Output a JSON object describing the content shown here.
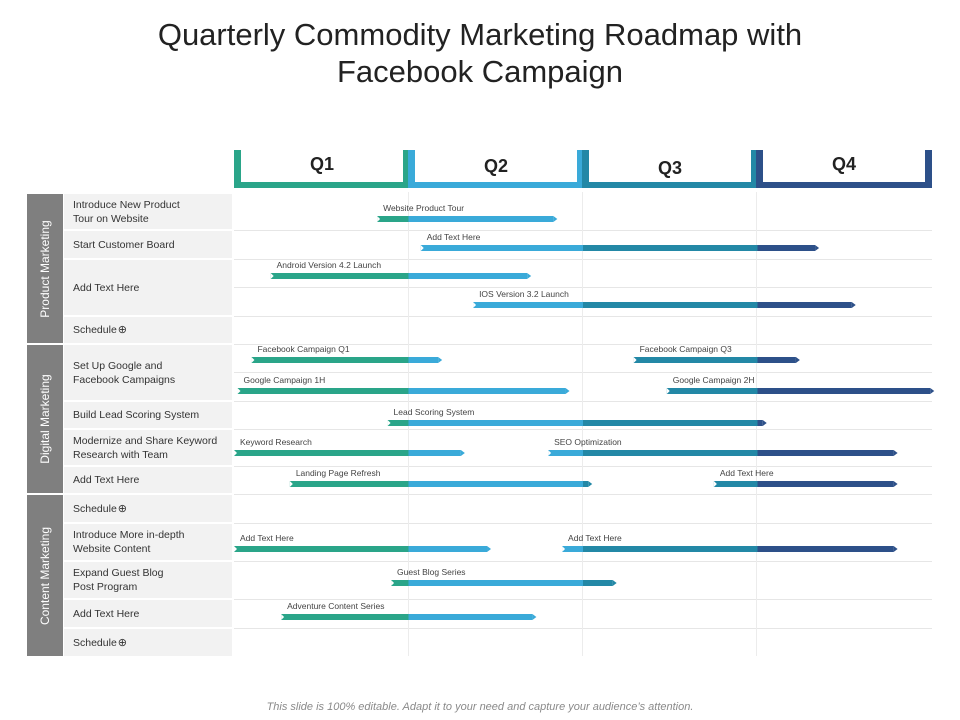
{
  "title_line1": "Quarterly Commodity Marketing Roadmap with",
  "title_line2": "Facebook Campaign",
  "quarters": [
    {
      "label": "Q1",
      "color": "#2aa589"
    },
    {
      "label": "Q2",
      "color": "#3aaad9"
    },
    {
      "label": "Q3",
      "color": "#2388a6"
    },
    {
      "label": "Q4",
      "color": "#2d5089"
    }
  ],
  "sections": [
    {
      "label": "Product Marketing"
    },
    {
      "label": "Digital Marketing"
    },
    {
      "label": "Content Marketing"
    }
  ],
  "rows": [
    {
      "label": "Introduce New Product\nTour on Website"
    },
    {
      "label": "Start Customer Board"
    },
    {
      "label": "Add Text Here"
    },
    {
      "label": "Schedule",
      "icon": "plus-circle-icon"
    },
    {
      "label": "Set Up Google and\nFacebook Campaigns"
    },
    {
      "label": "Build Lead Scoring System"
    },
    {
      "label": "Modernize and Share Keyword\nResearch with Team"
    },
    {
      "label": "Add Text Here"
    },
    {
      "label": "Schedule",
      "icon": "plus-circle-icon"
    },
    {
      "label": "Introduce More in-depth\nWebsite Content"
    },
    {
      "label": "Expand Guest Blog\nPost Program"
    },
    {
      "label": "Add Text Here"
    },
    {
      "label": "Schedule",
      "icon": "plus-circle-icon"
    }
  ],
  "tasks": [
    {
      "label": "Website Product Tour",
      "row": 0,
      "start": 0.82,
      "end": 1.83
    },
    {
      "label": "Add Text Here",
      "row": 1,
      "start": 1.07,
      "end": 3.33
    },
    {
      "label": "Android Version 4.2 Launch",
      "row": 2,
      "start": 0.21,
      "end": 1.68
    },
    {
      "label": "IOS Version 3.2 Launch",
      "row": 2,
      "start": 1.37,
      "end": 3.54
    },
    {
      "label": "Facebook Campaign Q1",
      "row": 4,
      "start": 0.1,
      "end": 1.17
    },
    {
      "label": "Facebook Campaign Q3",
      "row": 4,
      "start": 2.29,
      "end": 3.22
    },
    {
      "label": "Google Campaign 1H",
      "row": 4,
      "start": 0.02,
      "end": 1.9
    },
    {
      "label": "Google Campaign 2H",
      "row": 4,
      "start": 2.48,
      "end": 3.99
    },
    {
      "label": "Lead Scoring System",
      "row": 5,
      "start": 0.88,
      "end": 3.03
    },
    {
      "label": "Keyword Research",
      "row": 6,
      "start": 0.0,
      "end": 1.3
    },
    {
      "label": "SEO Optimization",
      "row": 6,
      "start": 1.8,
      "end": 3.78
    },
    {
      "label": "Landing Page Refresh",
      "row": 7,
      "start": 0.32,
      "end": 2.03
    },
    {
      "label": "Add Text Here",
      "row": 7,
      "start": 2.75,
      "end": 3.78
    },
    {
      "label": "Add Text Here",
      "row": 9,
      "start": 0.0,
      "end": 1.45
    },
    {
      "label": "Add Text Here",
      "row": 9,
      "start": 1.88,
      "end": 3.78
    },
    {
      "label": "Guest Blog Series",
      "row": 10,
      "start": 0.9,
      "end": 2.17
    },
    {
      "label": "Adventure Content Series",
      "row": 11,
      "start": 0.27,
      "end": 1.71
    }
  ],
  "footer": "This slide is 100% editable. Adapt it to your need and capture your audience’s attention."
}
